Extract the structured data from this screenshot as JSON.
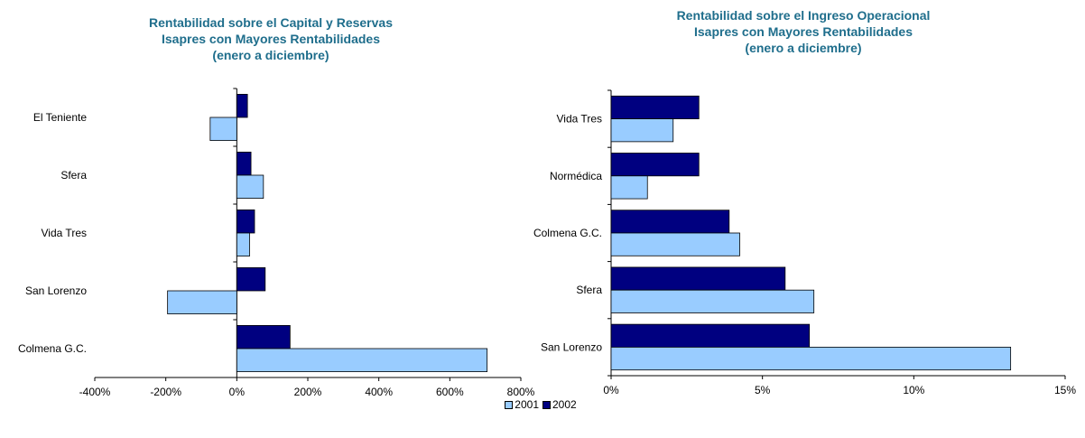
{
  "legend": [
    {
      "name": "2001",
      "color": "#99ccff"
    },
    {
      "name": "2002",
      "color": "#000080"
    }
  ],
  "chart_data": [
    {
      "type": "bar",
      "orientation": "horizontal",
      "title": "Rentabilidad sobre el Capital y Reservas",
      "subtitle": [
        "Isapres con Mayores Rentabilidades",
        "(enero a diciembre)"
      ],
      "categories": [
        "El Teniente",
        "Sfera",
        "Vida Tres",
        "San Lorenzo",
        "Colmena G.C."
      ],
      "series": [
        {
          "name": "2001",
          "values": [
            -75,
            75,
            36,
            -195,
            705
          ]
        },
        {
          "name": "2002",
          "values": [
            30,
            40,
            50,
            80,
            150
          ]
        }
      ],
      "xlim": [
        -400,
        800
      ],
      "xticks": [
        -400,
        -200,
        0,
        200,
        400,
        600,
        800
      ],
      "tick_suffix": "%",
      "grid": false
    },
    {
      "type": "bar",
      "orientation": "horizontal",
      "title": "Rentabilidad sobre el Ingreso Operacional",
      "subtitle": [
        "Isapres con Mayores Rentabilidades",
        "(enero a diciembre)"
      ],
      "categories": [
        "Vida Tres",
        "Normédica",
        "Colmena G.C.",
        "Sfera",
        "San Lorenzo"
      ],
      "series": [
        {
          "name": "2001",
          "values": [
            2.05,
            1.2,
            4.25,
            6.7,
            13.2
          ]
        },
        {
          "name": "2002",
          "values": [
            2.9,
            2.9,
            3.9,
            5.75,
            6.55
          ]
        }
      ],
      "xlim": [
        0,
        15
      ],
      "xticks": [
        0,
        5,
        10,
        15
      ],
      "tick_suffix": "%",
      "grid": false
    }
  ]
}
